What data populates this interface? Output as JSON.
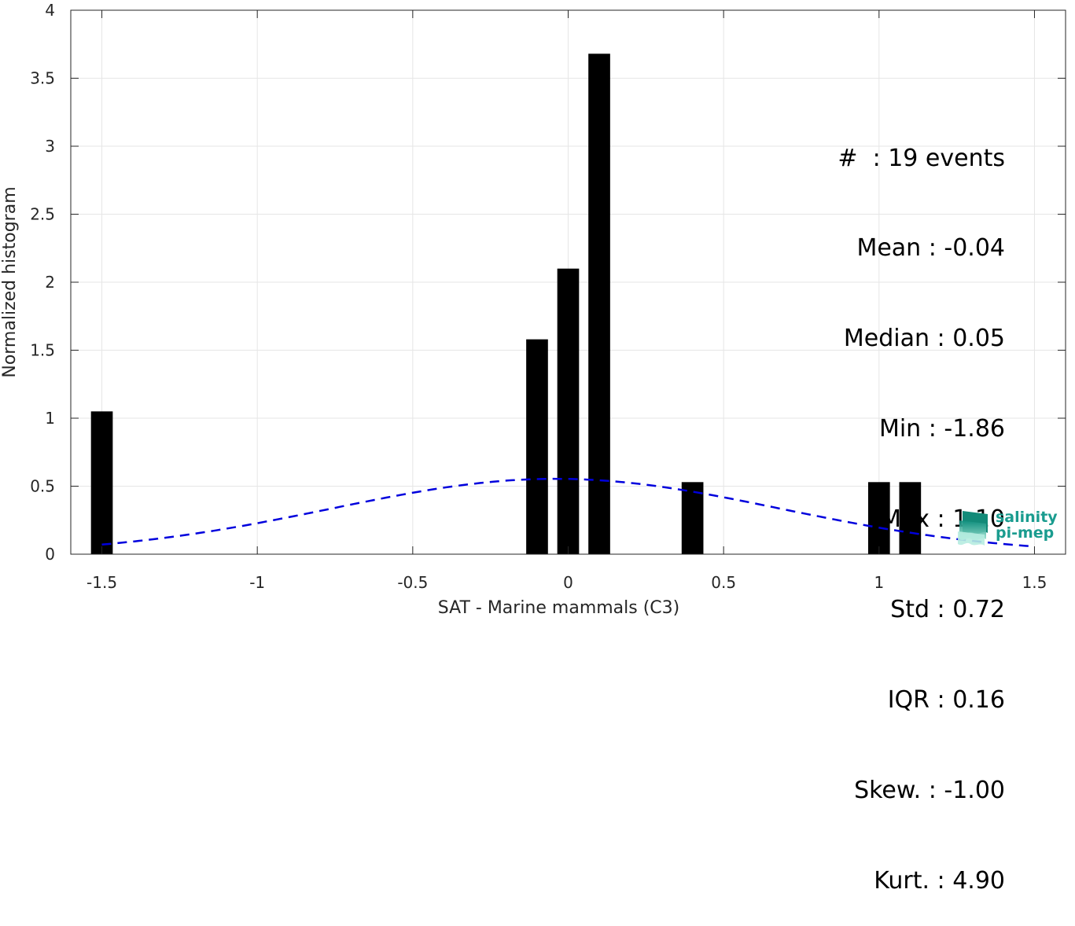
{
  "chart_data": {
    "type": "bar",
    "xlabel": "SAT - Marine mammals (C3)",
    "ylabel": "Normalized histogram",
    "xlim": [
      -1.6,
      1.6
    ],
    "ylim": [
      0,
      4
    ],
    "xticks": [
      -1.5,
      -1,
      -0.5,
      0,
      0.5,
      1,
      1.5
    ],
    "xtick_labels": [
      "-1.5",
      "-1",
      "-0.5",
      "0",
      "0.5",
      "1",
      "1.5"
    ],
    "yticks": [
      0,
      0.5,
      1,
      1.5,
      2,
      2.5,
      3,
      3.5,
      4
    ],
    "ytick_labels": [
      "0",
      "0.5",
      "1",
      "1.5",
      "2",
      "2.5",
      "3",
      "3.5",
      "4"
    ],
    "grid": true,
    "bar_width": 0.07,
    "bars": [
      {
        "x": -1.5,
        "value": 1.05
      },
      {
        "x": -0.1,
        "value": 1.58
      },
      {
        "x": 0.0,
        "value": 2.1
      },
      {
        "x": 0.1,
        "value": 3.68
      },
      {
        "x": 0.4,
        "value": 0.53
      },
      {
        "x": 1.0,
        "value": 0.53
      },
      {
        "x": 1.1,
        "value": 0.53
      }
    ],
    "gaussian_fit": {
      "mean": -0.04,
      "std": 0.72,
      "x_range": [
        -1.5,
        1.5
      ]
    },
    "colors": {
      "bars": "#000000",
      "fit": "#0000dd",
      "grid": "#e6e6e6",
      "axis": "#262626"
    }
  },
  "stats": [
    "#  : 19 events",
    "Mean : -0.04",
    "Median : 0.05",
    "Min : -1.86",
    "Max : 1.10",
    "Std : 0.72",
    "IQR : 0.16",
    "Skew. : -1.00",
    "Kurt. : 4.90"
  ],
  "logo": {
    "line1": "salinity",
    "line2": "pi-mep"
  }
}
